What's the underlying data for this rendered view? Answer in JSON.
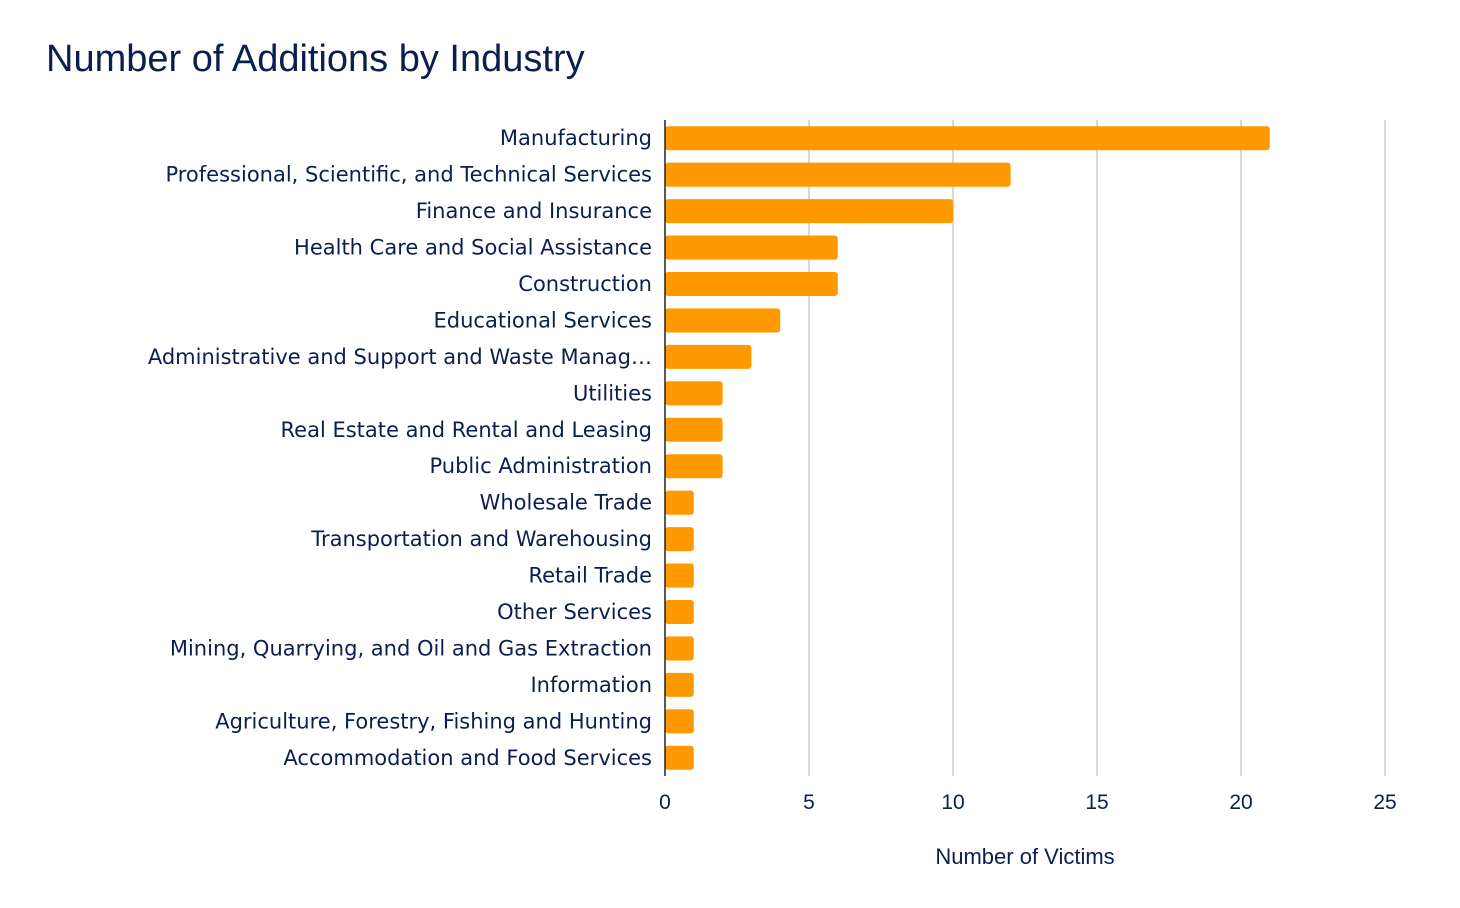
{
  "chart_data": {
    "type": "bar",
    "orientation": "horizontal",
    "title": "Number of Additions by Industry",
    "xlabel": "Number of Victims",
    "ylabel": "",
    "xlim": [
      0,
      25
    ],
    "xticks": [
      0,
      5,
      10,
      15,
      20,
      25
    ],
    "grid": true,
    "bar_color": "#ff9900",
    "categories": [
      "Manufacturing",
      "Professional, Scientific, and Technical Services",
      "Finance and Insurance",
      "Health Care and Social Assistance",
      "Construction",
      "Educational Services",
      "Administrative and Support and Waste Manag…",
      "Utilities",
      "Real Estate and Rental and Leasing",
      "Public Administration",
      "Wholesale Trade",
      "Transportation and Warehousing",
      "Retail Trade",
      "Other Services",
      "Mining, Quarrying, and Oil and Gas Extraction",
      "Information",
      "Agriculture, Forestry, Fishing and Hunting",
      "Accommodation and Food Services"
    ],
    "values": [
      21,
      12,
      10,
      6,
      6,
      4,
      3,
      2,
      2,
      2,
      1,
      1,
      1,
      1,
      1,
      1,
      1,
      1
    ]
  }
}
